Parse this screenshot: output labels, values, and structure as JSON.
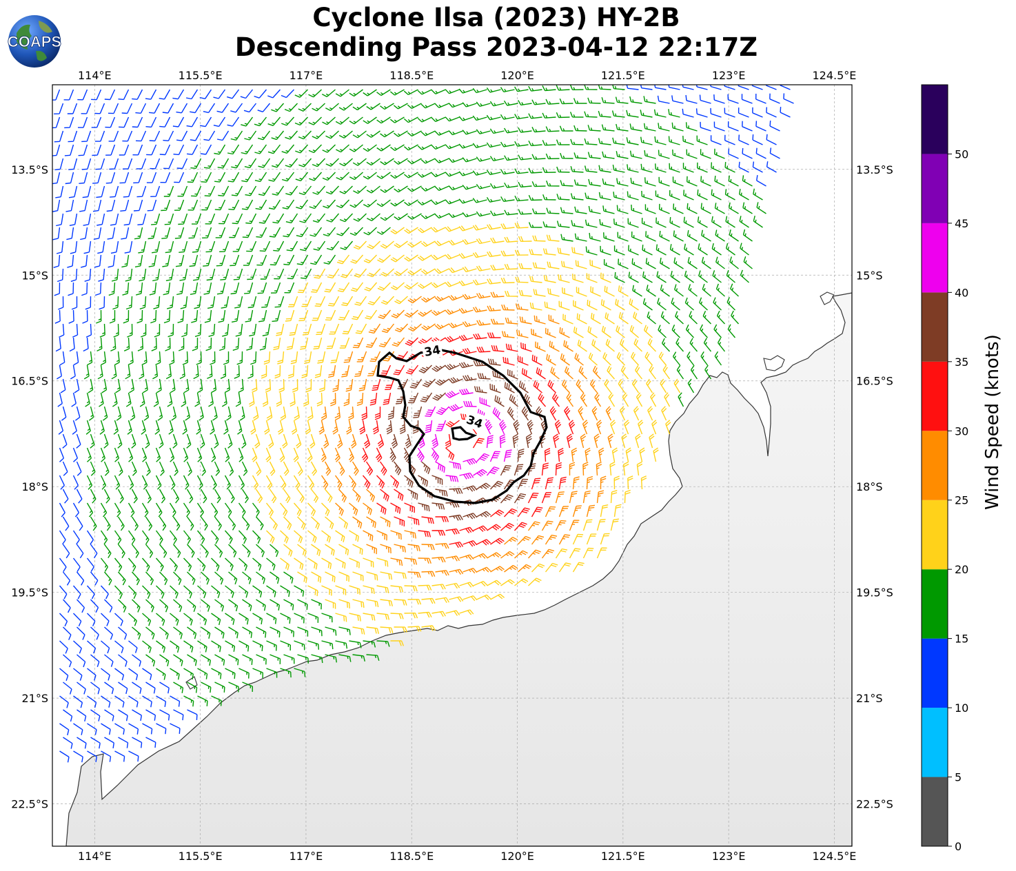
{
  "title": {
    "line1": "Cyclone Ilsa (2023) HY-2B",
    "line2": "Descending Pass 2023-04-12 22:17Z"
  },
  "logo": {
    "text": "COAPS",
    "icon": "globe-logo-icon"
  },
  "map": {
    "lon_range": [
      113.4,
      124.75
    ],
    "lat_range": [
      -23.1,
      -12.3
    ],
    "lon_ticks": [
      "114°E",
      "115.5°E",
      "117°E",
      "118.5°E",
      "120°E",
      "121.5°E",
      "123°E",
      "124.5°E"
    ],
    "lat_ticks": [
      "13.5°S",
      "15°S",
      "16.5°S",
      "18°S",
      "19.5°S",
      "21°S",
      "22.5°S"
    ],
    "grid": true,
    "center": {
      "lon": 119.25,
      "lat": -17.3
    },
    "contour_label": "34",
    "land_color": "#f0f0f0",
    "coast_color": "#333333"
  },
  "colorbar": {
    "title": "Wind Speed (knots)",
    "tick_labels": [
      "0",
      "5",
      "10",
      "15",
      "20",
      "25",
      "30",
      "35",
      "40",
      "45",
      "50"
    ],
    "bins": [
      {
        "min": 0,
        "max": 5,
        "color": "#555555"
      },
      {
        "min": 5,
        "max": 10,
        "color": "#00bfff"
      },
      {
        "min": 10,
        "max": 15,
        "color": "#0038ff"
      },
      {
        "min": 15,
        "max": 20,
        "color": "#009900"
      },
      {
        "min": 20,
        "max": 25,
        "color": "#ffd21a"
      },
      {
        "min": 25,
        "max": 30,
        "color": "#ff8c00"
      },
      {
        "min": 30,
        "max": 35,
        "color": "#ff1010"
      },
      {
        "min": 35,
        "max": 40,
        "color": "#7e3c25"
      },
      {
        "min": 40,
        "max": 45,
        "color": "#ee00ee"
      },
      {
        "min": 45,
        "max": 50,
        "color": "#8000b4"
      },
      {
        "min": 50,
        "max": 55,
        "color": "#2a005c"
      }
    ]
  }
}
